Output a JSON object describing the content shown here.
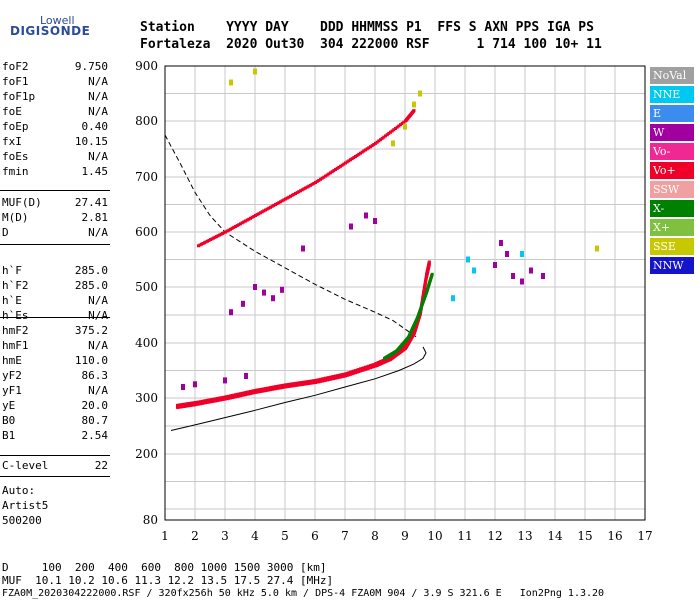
{
  "logo": {
    "line1": "Lowell",
    "line2": "DIGISONDE"
  },
  "header": {
    "row1": "Station    YYYY DAY    DDD HHMMSS P1  FFS S AXN PPS IGA PS",
    "row2": "Fortaleza  2020 Out30  304 222000 RSF      1 714 100 10+ 11"
  },
  "params": {
    "group1": [
      {
        "name": "foF2",
        "value": "9.750"
      },
      {
        "name": "foF1",
        "value": "N/A"
      },
      {
        "name": "foF1p",
        "value": "N/A"
      },
      {
        "name": "foE",
        "value": "N/A"
      },
      {
        "name": "foEp",
        "value": "0.40"
      },
      {
        "name": "fxI",
        "value": "10.15"
      },
      {
        "name": "foEs",
        "value": "N/A"
      },
      {
        "name": "fmin",
        "value": "1.45"
      }
    ],
    "group2": [
      {
        "name": "MUF(D)",
        "value": "27.41"
      },
      {
        "name": "M(D)",
        "value": "2.81"
      },
      {
        "name": "D",
        "value": "N/A"
      }
    ],
    "group3": [
      {
        "name": "h`F",
        "value": "285.0"
      },
      {
        "name": "h`F2",
        "value": "285.0"
      },
      {
        "name": "h`E",
        "value": "N/A"
      },
      {
        "name": "h`Es",
        "value": "N/A"
      }
    ],
    "group4": [
      {
        "name": "hmF2",
        "value": "375.2"
      },
      {
        "name": "hmF1",
        "value": "N/A"
      },
      {
        "name": "hmE",
        "value": "110.0"
      },
      {
        "name": "yF2",
        "value": "86.3"
      },
      {
        "name": "yF1",
        "value": "N/A"
      },
      {
        "name": "yE",
        "value": "20.0"
      },
      {
        "name": "B0",
        "value": "80.7"
      },
      {
        "name": "B1",
        "value": "2.54"
      }
    ],
    "group5": [
      {
        "name": "C-level",
        "value": "22"
      }
    ],
    "auto": [
      "Auto:",
      "Artist5",
      "500200"
    ]
  },
  "legend": [
    {
      "label": "NoVal",
      "color": "#a0a0a0"
    },
    {
      "label": "NNE",
      "color": "#00c8f0"
    },
    {
      "label": "E",
      "color": "#3c8cf0"
    },
    {
      "label": "W",
      "color": "#a000a0"
    },
    {
      "label": "Vo-",
      "color": "#f02894"
    },
    {
      "label": "Vo+",
      "color": "#f00028"
    },
    {
      "label": "SSW",
      "color": "#f0a0a0"
    },
    {
      "label": "X-",
      "color": "#008000"
    },
    {
      "label": "X+",
      "color": "#80c040"
    },
    {
      "label": "SSE",
      "color": "#c8c800"
    },
    {
      "label": "NNW",
      "color": "#1414c8"
    }
  ],
  "footer": {
    "row1": "D     100  200  400  600  800 1000 1500 3000 [km]",
    "row2": "MUF  10.1 10.2 10.6 11.3 12.2 13.5 17.5 27.4 [MHz]",
    "row3": "FZA0M_2020304222000.RSF / 320fx256h 50 kHz 5.0 km / DPS-4 FZA0M 904 / 3.9 S 321.6 E   Ion2Png 1.3.20"
  },
  "chart_data": {
    "type": "scatter",
    "xlim": [
      1,
      17
    ],
    "ylim": [
      80,
      900
    ],
    "x_ticks": [
      1,
      2,
      3,
      4,
      5,
      6,
      7,
      8,
      9,
      10,
      11,
      12,
      13,
      14,
      15,
      16,
      17
    ],
    "y_ticks": [
      80,
      200,
      300,
      400,
      500,
      600,
      700,
      800,
      900
    ],
    "grid": true,
    "legend_position": "right",
    "series": [
      {
        "name": "Vo+",
        "color": "#f00028",
        "points": [
          [
            1.4,
            285
          ],
          [
            2,
            290
          ],
          [
            3,
            300
          ],
          [
            4,
            312
          ],
          [
            5,
            322
          ],
          [
            6,
            330
          ],
          [
            7,
            342
          ],
          [
            8,
            360
          ],
          [
            8.5,
            372
          ],
          [
            9,
            392
          ],
          [
            9.3,
            420
          ],
          [
            9.5,
            455
          ],
          [
            9.7,
            520
          ],
          [
            9.8,
            545
          ]
        ]
      },
      {
        "name": "X-",
        "color": "#008000",
        "points": [
          [
            8.3,
            372
          ],
          [
            8.7,
            385
          ],
          [
            9.1,
            410
          ],
          [
            9.4,
            445
          ],
          [
            9.7,
            490
          ],
          [
            9.9,
            525
          ]
        ]
      },
      {
        "name": "W",
        "color": "#a000a0",
        "points": [
          [
            1.6,
            320
          ],
          [
            2,
            325
          ],
          [
            3,
            332
          ],
          [
            3.7,
            340
          ],
          [
            12,
            540
          ],
          [
            12.2,
            580
          ],
          [
            12.4,
            560
          ],
          [
            12.6,
            520
          ],
          [
            12.9,
            510
          ],
          [
            13.2,
            530
          ],
          [
            13.6,
            520
          ]
        ]
      },
      {
        "name": "Vo+ 2hop",
        "color": "#f00028",
        "points": [
          [
            2.1,
            575
          ],
          [
            3,
            600
          ],
          [
            4,
            630
          ],
          [
            5,
            660
          ],
          [
            6,
            690
          ],
          [
            7,
            725
          ],
          [
            8,
            760
          ],
          [
            9,
            800
          ],
          [
            9.3,
            820
          ]
        ]
      },
      {
        "name": "SSE",
        "color": "#c8c800",
        "points": [
          [
            8.6,
            760
          ],
          [
            9,
            790
          ],
          [
            9.3,
            830
          ],
          [
            9.5,
            850
          ],
          [
            3.2,
            870
          ],
          [
            4,
            890
          ],
          [
            15.4,
            570
          ]
        ]
      },
      {
        "name": "NNE",
        "color": "#00c8f0",
        "points": [
          [
            10.6,
            480
          ],
          [
            11.1,
            550
          ],
          [
            11.3,
            530
          ],
          [
            12.9,
            560
          ]
        ]
      },
      {
        "name": "W sporadic",
        "color": "#a000a0",
        "points": [
          [
            4,
            500
          ],
          [
            4.3,
            490
          ],
          [
            4.6,
            480
          ],
          [
            4.9,
            495
          ],
          [
            3.2,
            455
          ],
          [
            3.6,
            470
          ],
          [
            7.2,
            610
          ],
          [
            7.7,
            630
          ],
          [
            8,
            620
          ],
          [
            5.6,
            570
          ]
        ]
      }
    ],
    "curves": [
      {
        "name": "profile-solid",
        "points": [
          [
            1.2,
            242
          ],
          [
            2,
            252
          ],
          [
            3,
            265
          ],
          [
            4,
            278
          ],
          [
            5,
            292
          ],
          [
            6,
            305
          ],
          [
            7,
            320
          ],
          [
            8,
            335
          ],
          [
            8.8,
            350
          ],
          [
            9.3,
            362
          ],
          [
            9.6,
            372
          ],
          [
            9.7,
            382
          ],
          [
            9.6,
            393
          ]
        ]
      },
      {
        "name": "profile-dashed",
        "points": [
          [
            1,
            775
          ],
          [
            1.5,
            725
          ],
          [
            2,
            672
          ],
          [
            2.5,
            630
          ],
          [
            3,
            600
          ],
          [
            4,
            565
          ],
          [
            5,
            535
          ],
          [
            6,
            505
          ],
          [
            7,
            478
          ],
          [
            8,
            455
          ],
          [
            8.6,
            440
          ],
          [
            9,
            425
          ],
          [
            9.4,
            410
          ]
        ]
      }
    ]
  }
}
